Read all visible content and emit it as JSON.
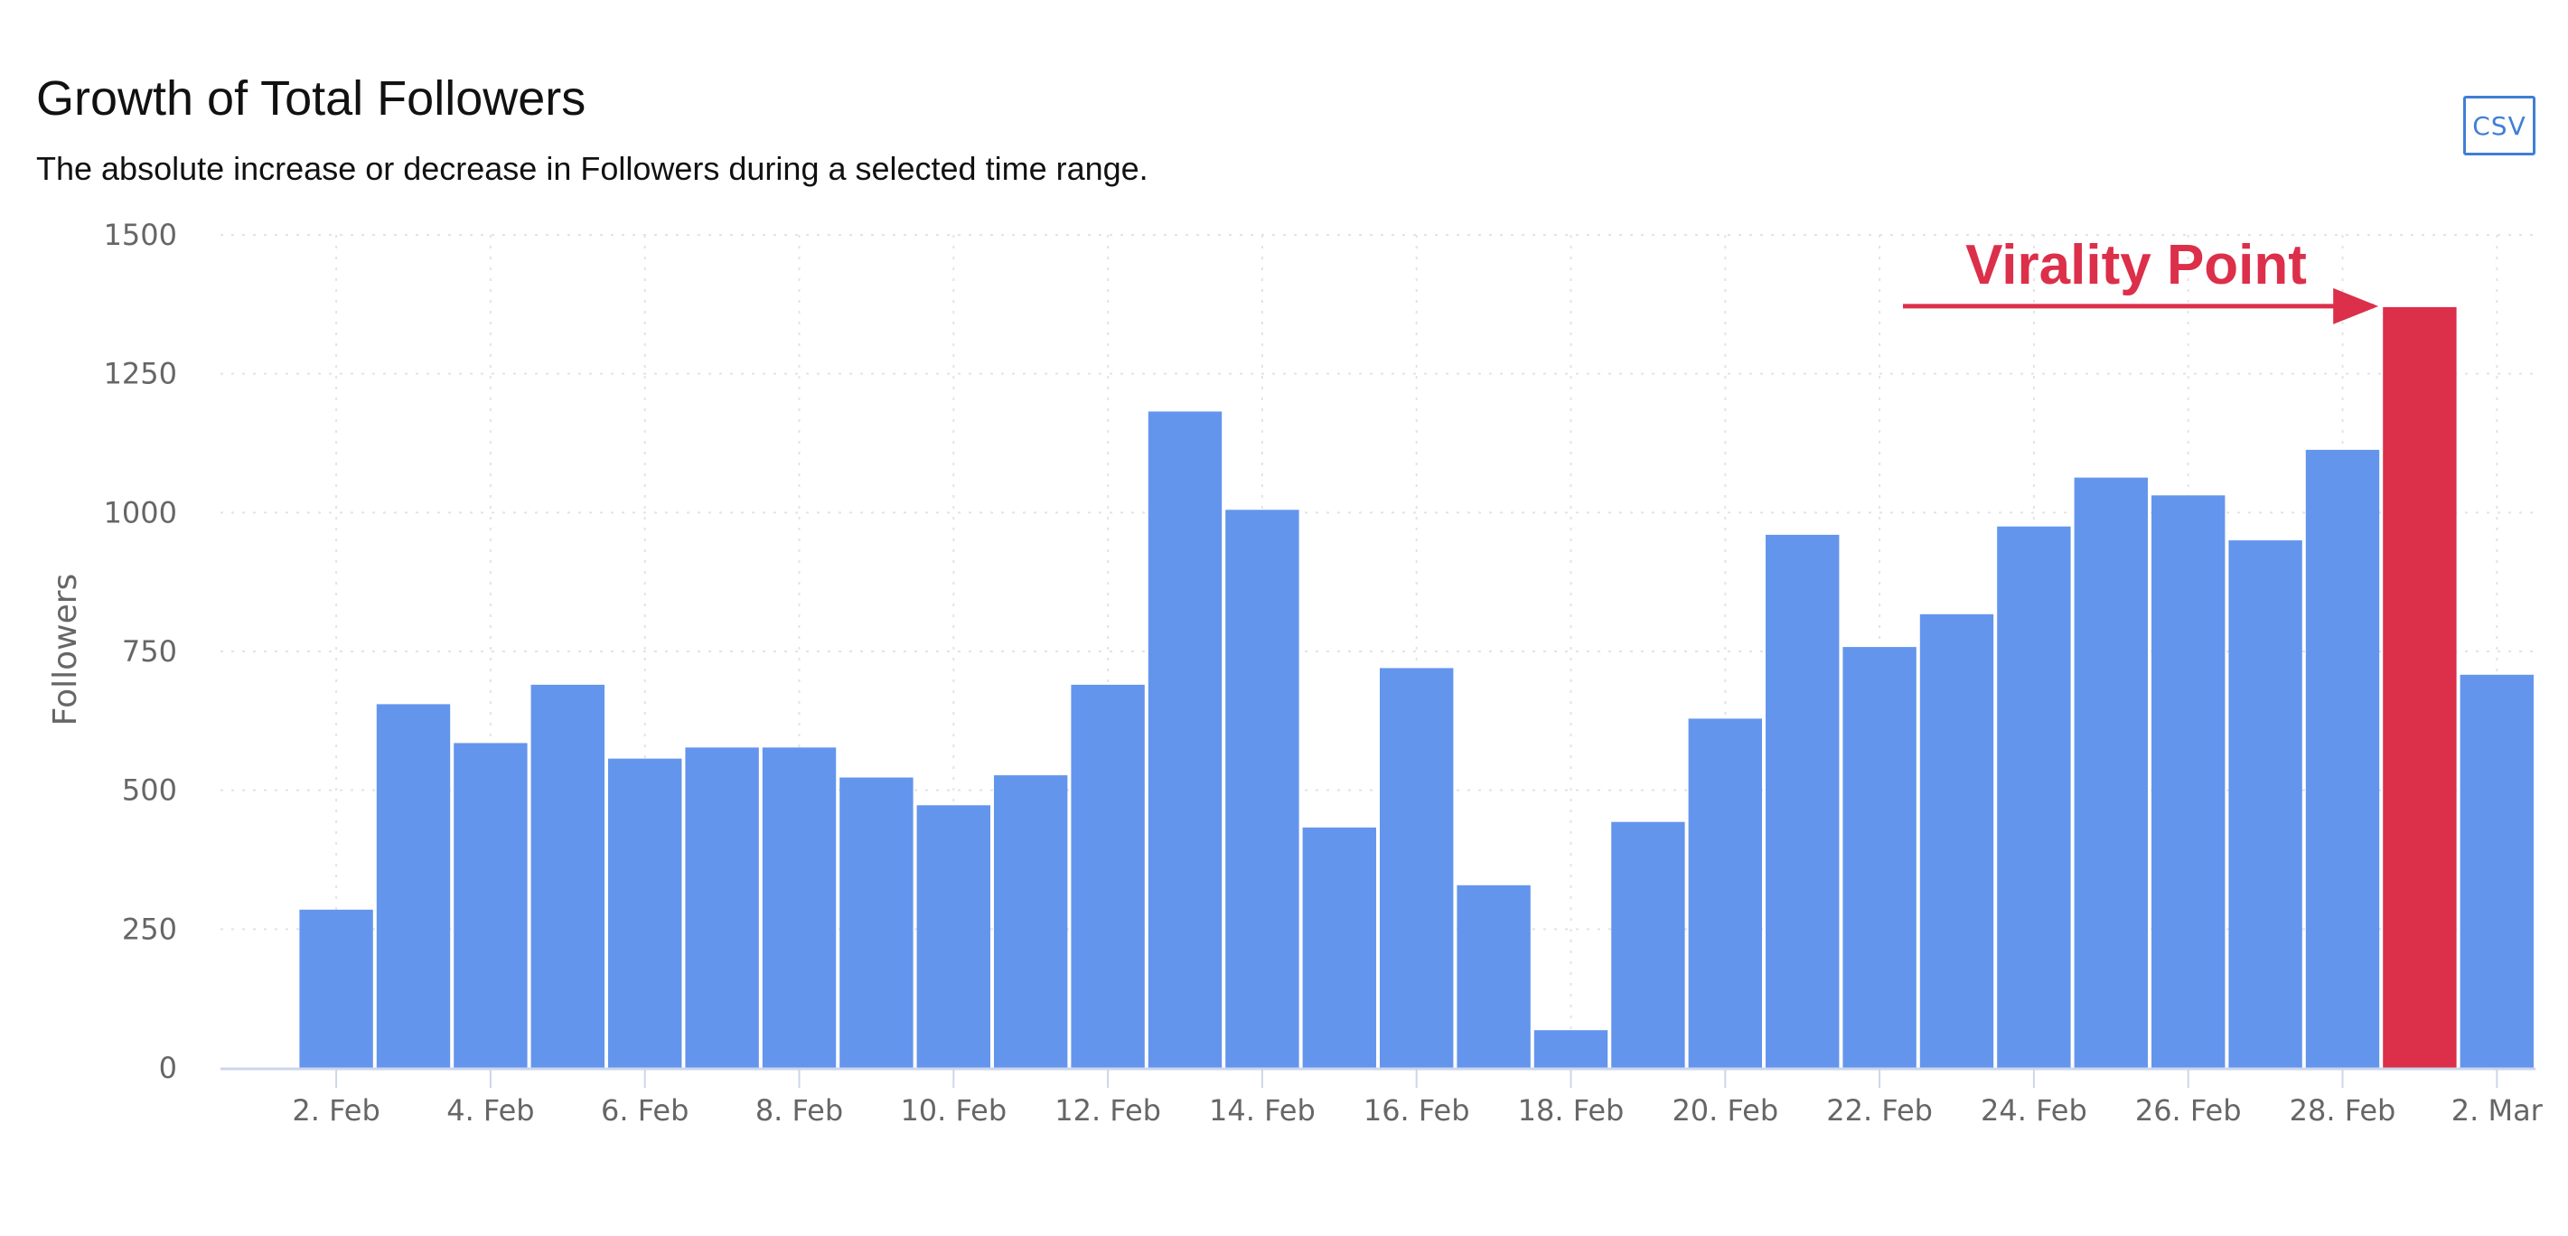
{
  "header": {
    "title": "Growth of Total Followers",
    "subtitle": "The absolute increase or decrease in Followers during a selected time range.",
    "csv_label": "CSV"
  },
  "colors": {
    "bar": "#6495ed",
    "highlight": "#dc2f4a",
    "grid": "#e3e3e3",
    "axis_line": "#ccd6eb",
    "text": "#666666"
  },
  "annotation": {
    "text": "Virality Point",
    "target_date": "1. Mar"
  },
  "chart_data": {
    "type": "bar",
    "title": "Growth of Total Followers",
    "xlabel": "",
    "ylabel": "Followers",
    "ylim": [
      0,
      1500
    ],
    "yticks": [
      0,
      250,
      500,
      750,
      1000,
      1250,
      1500
    ],
    "xticks": [
      "2. Feb",
      "4. Feb",
      "6. Feb",
      "8. Feb",
      "10. Feb",
      "12. Feb",
      "14. Feb",
      "16. Feb",
      "18. Feb",
      "20. Feb",
      "22. Feb",
      "24. Feb",
      "26. Feb",
      "28. Feb",
      "2. Mar"
    ],
    "grid": true,
    "categories": [
      "1. Feb",
      "2. Feb",
      "3. Feb",
      "4. Feb",
      "5. Feb",
      "6. Feb",
      "7. Feb",
      "8. Feb",
      "9. Feb",
      "10. Feb",
      "11. Feb",
      "12. Feb",
      "13. Feb",
      "14. Feb",
      "15. Feb",
      "16. Feb",
      "17. Feb",
      "18. Feb",
      "19. Feb",
      "20. Feb",
      "21. Feb",
      "22. Feb",
      "23. Feb",
      "24. Feb",
      "25. Feb",
      "26. Feb",
      "27. Feb",
      "28. Feb",
      "1. Mar",
      "2. Mar"
    ],
    "values": [
      0,
      285,
      655,
      585,
      690,
      557,
      577,
      577,
      523,
      473,
      527,
      690,
      1182,
      1005,
      433,
      720,
      329,
      68,
      443,
      629,
      960,
      758,
      817,
      975,
      1063,
      1031,
      950,
      1113,
      1370,
      708
    ],
    "highlight_category": "1. Mar"
  }
}
